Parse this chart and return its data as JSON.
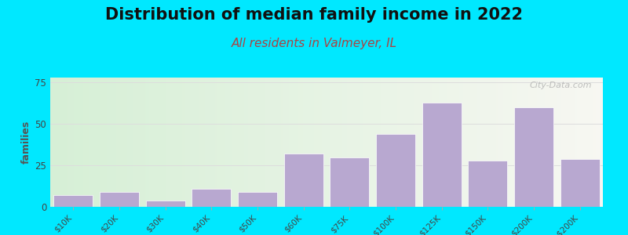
{
  "title": "Distribution of median family income in 2022",
  "subtitle": "All residents in Valmeyer, IL",
  "ylabel": "families",
  "categories": [
    "$10K",
    "$20K",
    "$30K",
    "$40K",
    "$50K",
    "$60K",
    "$75K",
    "$100K",
    "$125K",
    "$150K",
    "$200K",
    "> $200K"
  ],
  "values": [
    7,
    9,
    4,
    11,
    9,
    32,
    30,
    44,
    63,
    28,
    60,
    29
  ],
  "bar_color": "#b8a8d0",
  "bar_edge_color": "#ffffff",
  "background_color": "#00e8ff",
  "yticks": [
    0,
    25,
    50,
    75
  ],
  "ylim": [
    0,
    78
  ],
  "title_fontsize": 15,
  "subtitle_fontsize": 11,
  "ylabel_fontsize": 9,
  "watermark": "City-Data.com",
  "grid_color": "#dddddd",
  "tick_label_color": "#444444",
  "subtitle_color": "#aa4444",
  "title_color": "#111111"
}
